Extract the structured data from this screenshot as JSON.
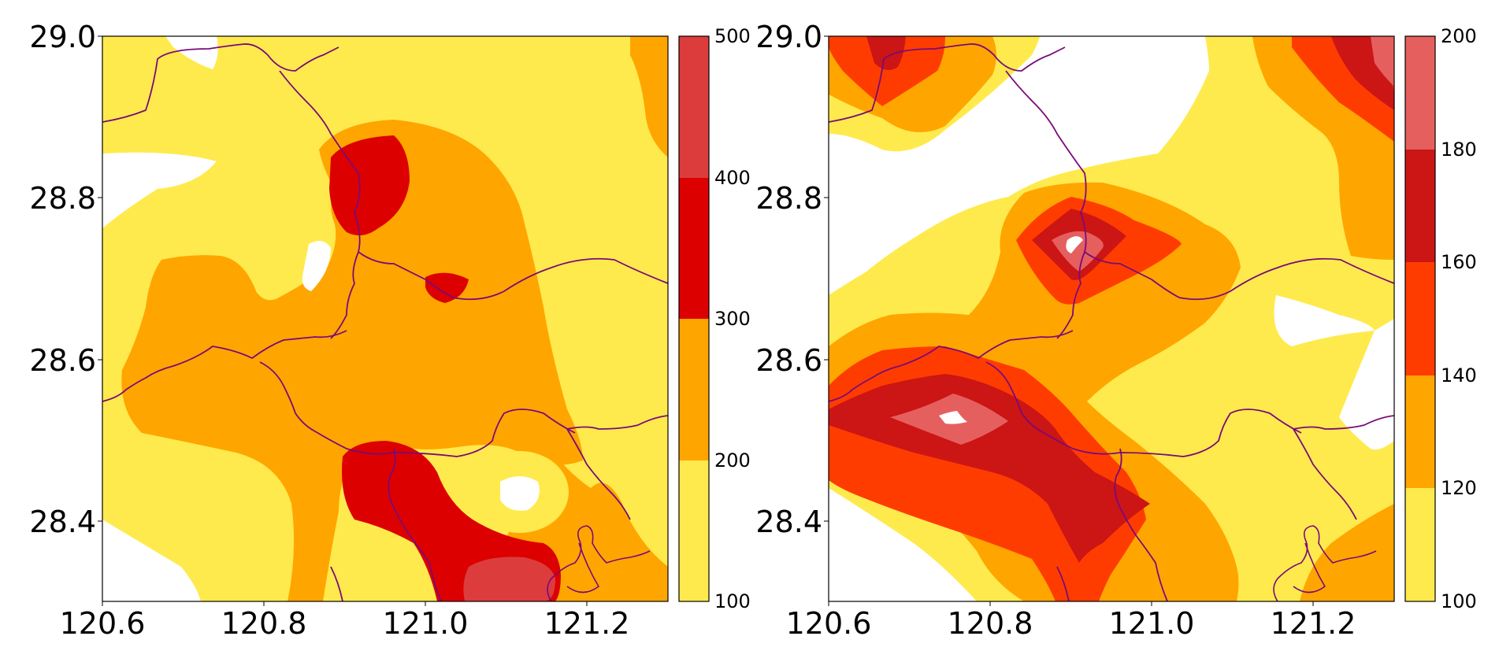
{
  "maps": [
    {
      "id": "left",
      "x_ticks": [
        "120.6",
        "120.8",
        "121.0",
        "121.2"
      ],
      "y_ticks": [
        "29.0",
        "28.8",
        "28.6",
        "28.4"
      ],
      "colorbar": {
        "levels": [
          "100",
          "200",
          "300",
          "400",
          "500"
        ],
        "colors": [
          "#ffea4d",
          "#ffa500",
          "#dd0000",
          "#dc3c3c"
        ]
      }
    },
    {
      "id": "right",
      "x_ticks": [
        "120.6",
        "120.8",
        "121.0",
        "121.2"
      ],
      "y_ticks": [
        "29.0",
        "28.8",
        "28.6",
        "28.4"
      ],
      "colorbar": {
        "levels": [
          "100",
          "120",
          "140",
          "160",
          "180",
          "200"
        ],
        "colors": [
          "#ffea4d",
          "#ffa500",
          "#ff3c00",
          "#cc1515",
          "#e65f5f"
        ]
      }
    }
  ],
  "palette": {
    "yellow": "#ffea4d",
    "orange": "#ffa500",
    "red_orange": "#ff3c00",
    "red": "#dd0000",
    "dark_red": "#cc1515",
    "light_red": "#e05050",
    "border": "#7a0a7a"
  }
}
